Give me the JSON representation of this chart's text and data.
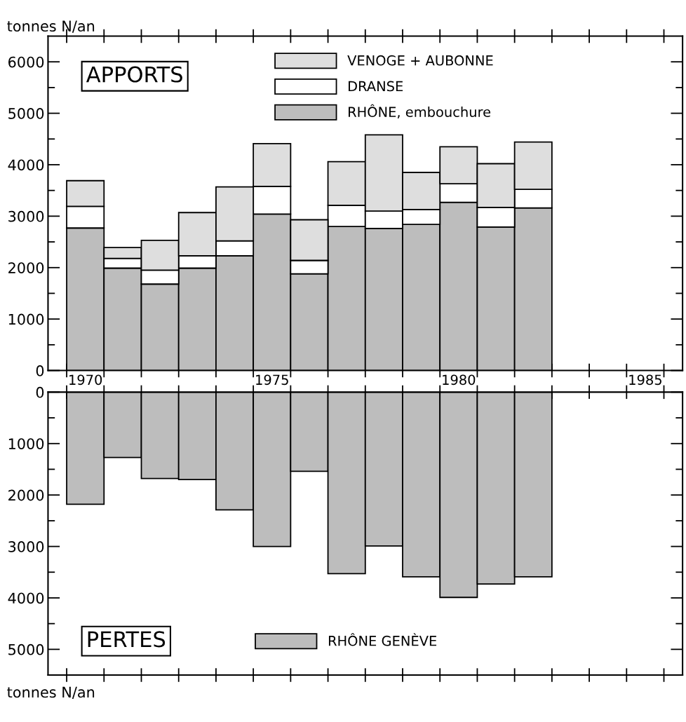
{
  "chart_data": [
    {
      "type": "bar",
      "stacked": true,
      "ylabel": "tonnes N/an",
      "annotations": [
        "APPORTS"
      ],
      "categories": [
        "1970",
        null,
        null,
        null,
        null,
        "1975",
        null,
        null,
        null,
        null,
        "1980",
        null,
        null,
        null,
        null,
        "1985"
      ],
      "series": [
        {
          "name": "RHÔNE, embouchure",
          "color": "#bdbdbd",
          "values": [
            2770,
            1990,
            1680,
            1990,
            2230,
            3040,
            1880,
            2800,
            2760,
            2840,
            3270,
            2790,
            3160,
            null,
            null,
            null
          ]
        },
        {
          "name": "DRANSE",
          "color": "#ffffff",
          "values": [
            420,
            190,
            270,
            240,
            290,
            540,
            260,
            410,
            340,
            290,
            360,
            380,
            360,
            null,
            null,
            null
          ]
        },
        {
          "name": "VENOGE + AUBONNE",
          "color": "#dedede",
          "values": [
            500,
            210,
            580,
            840,
            1050,
            830,
            790,
            850,
            1480,
            720,
            720,
            850,
            920,
            null,
            null,
            null
          ]
        }
      ],
      "ylim": [
        0,
        6500
      ],
      "yticks": [
        0,
        {
          "value": 500,
          "label": null
        },
        1000,
        {
          "value": 1500,
          "label": null
        },
        2000,
        {
          "value": 2500,
          "label": null
        },
        3000,
        {
          "value": 3500,
          "label": null
        },
        4000,
        {
          "value": 4500,
          "label": null
        },
        5000,
        {
          "value": 5500,
          "label": null
        },
        6000
      ],
      "legend": "top",
      "grid": false
    },
    {
      "type": "bar",
      "ylabel": "tonnes N/an",
      "annotations": [
        "PERTES"
      ],
      "categories": [
        "1970",
        null,
        null,
        null,
        null,
        "1975",
        null,
        null,
        null,
        null,
        "1980",
        null,
        null,
        null,
        null,
        "1985"
      ],
      "series": [
        {
          "name": "RHÔNE GENÈVE",
          "color": "#bdbdbd",
          "values": [
            2180,
            1270,
            1680,
            1700,
            2290,
            3000,
            1540,
            3530,
            2990,
            3590,
            3990,
            3730,
            3590,
            null,
            null,
            null
          ]
        }
      ],
      "ylim": [
        5500,
        0
      ],
      "yticks": [
        0,
        {
          "value": 500,
          "label": null
        },
        1000,
        {
          "value": 1500,
          "label": null
        },
        2000,
        {
          "value": 2500,
          "label": null
        },
        3000,
        {
          "value": 3500,
          "label": null
        },
        4000,
        {
          "value": 4500,
          "label": null
        },
        5000
      ],
      "tick_labels": "y",
      "legend": "bottom",
      "grid": false
    }
  ]
}
